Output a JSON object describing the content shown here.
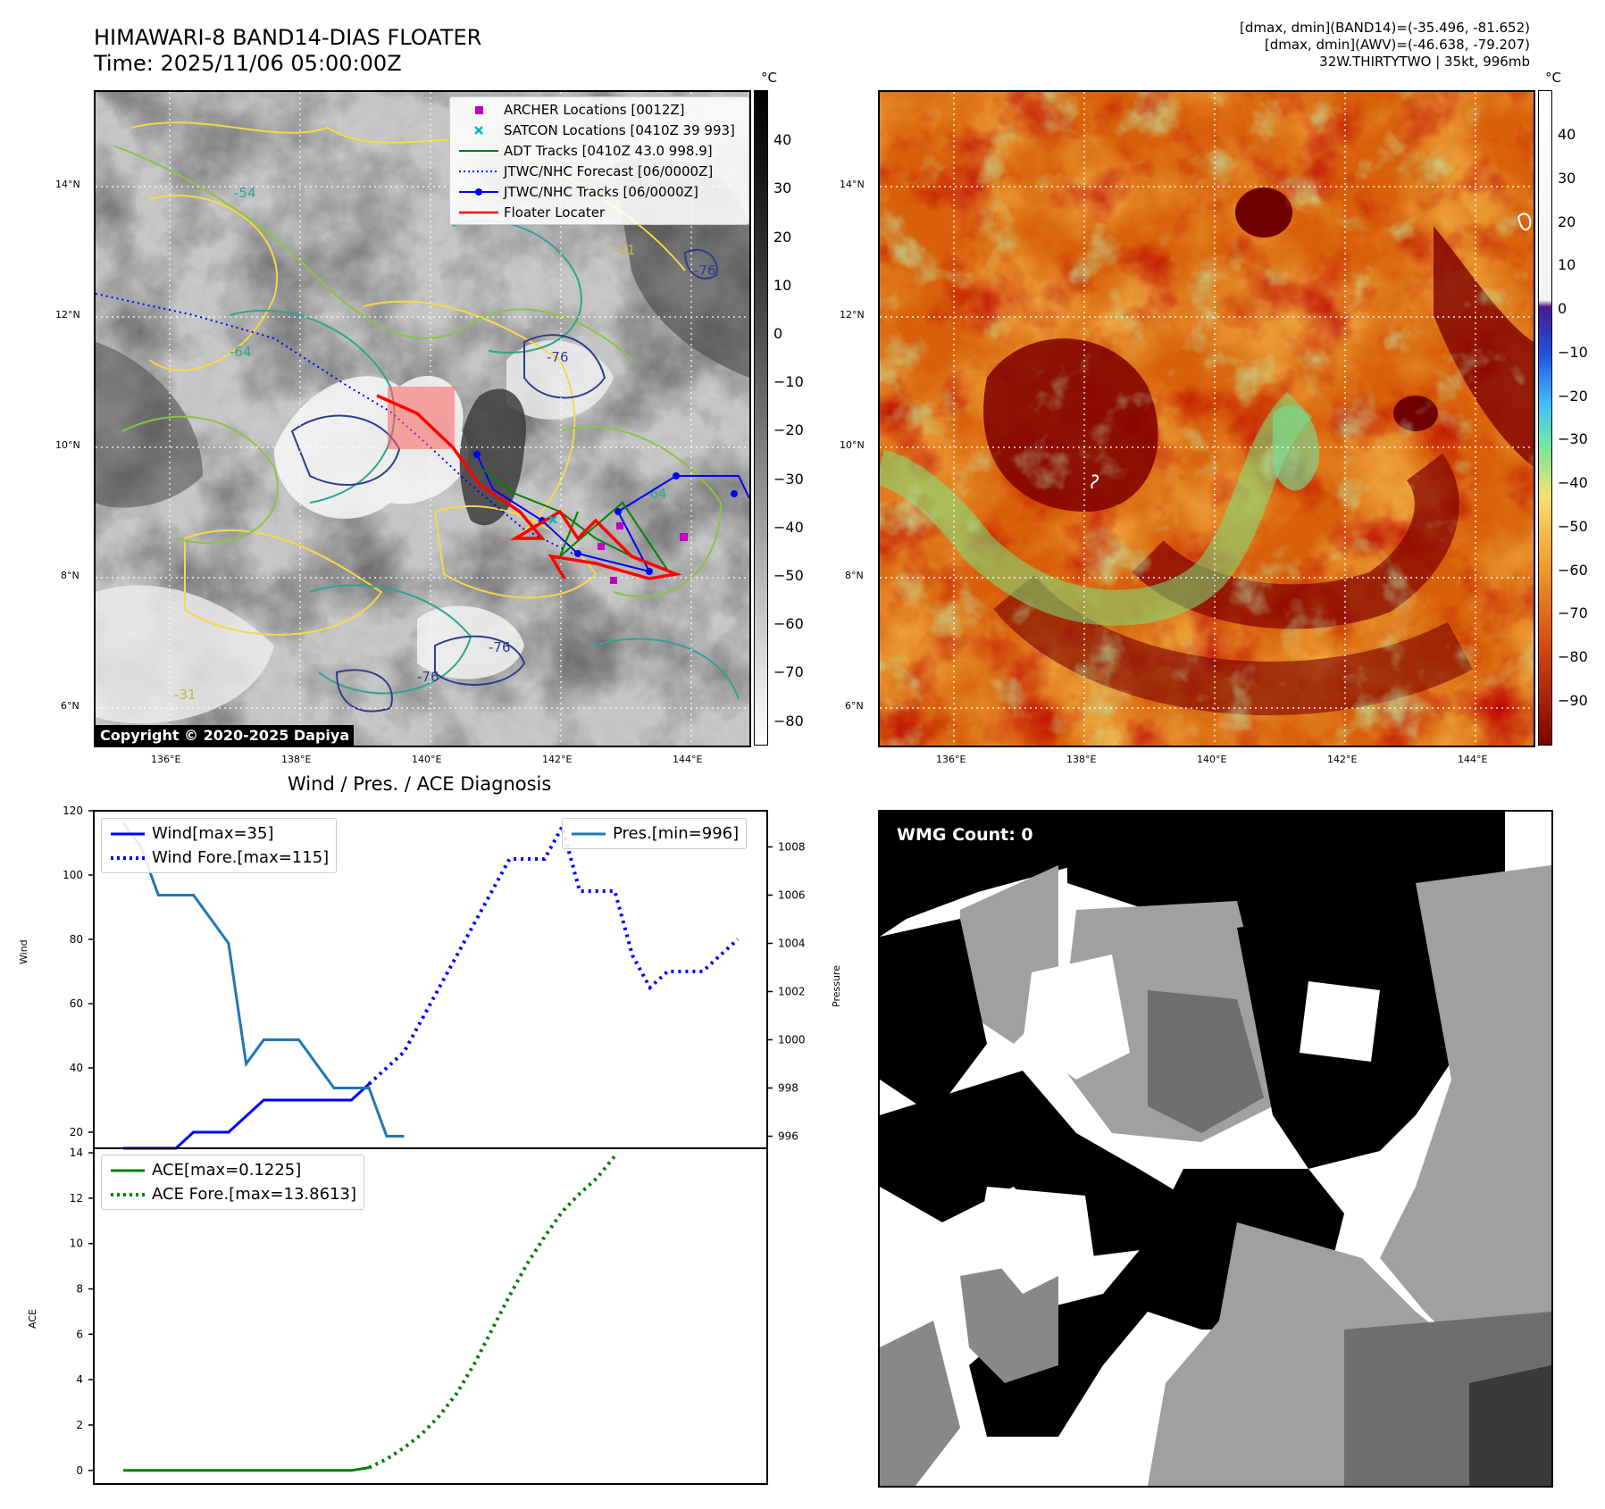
{
  "header": {
    "title_line1": "HIMAWARI-8 BAND14-DIAS FLOATER",
    "title_line2": "Time: 2025/11/06 05:00:00Z",
    "stat_line1": "[dmax, dmin](BAND14)=(-35.496, -81.652)",
    "stat_line2": "[dmax, dmin](AWV)=(-46.638, -79.207)",
    "stat_line3": "32W.THIRTYTWO | 35kt, 996mb"
  },
  "map_axes": {
    "lat_ticks": [
      "14°N",
      "12°N",
      "10°N",
      "8°N",
      "6°N"
    ],
    "lon_ticks": [
      "136°E",
      "138°E",
      "140°E",
      "142°E",
      "144°E"
    ]
  },
  "ir_panel": {
    "colorbar_unit": "°C",
    "colorbar_ticks": [
      "40",
      "30",
      "20",
      "10",
      "0",
      "−10",
      "−20",
      "−30",
      "−40",
      "−50",
      "−60",
      "−70",
      "−80"
    ],
    "contour_labels": [
      "-76",
      "-64",
      "-54",
      "-31"
    ],
    "copyright": "Copyright © 2020-2025 Dapiya",
    "legend": [
      {
        "label": "ARCHER Locations [0012Z]",
        "color": "#c000c0"
      },
      {
        "label": "SATCON Locations [0410Z 39 993]",
        "color": "#00b8b8"
      },
      {
        "label": "ADT Tracks [0410Z 43.0 998.9]",
        "color": "#008000"
      },
      {
        "label": "JTWC/NHC Forecast [06/0000Z]",
        "color": "#0000ff"
      },
      {
        "label": "JTWC/NHC Tracks [06/0000Z]",
        "color": "#0000ff"
      },
      {
        "label": "Floater Locater",
        "color": "#ff0000"
      }
    ]
  },
  "awv_panel": {
    "colorbar_unit": "°C",
    "colorbar_ticks": [
      "40",
      "30",
      "20",
      "10",
      "0",
      "−10",
      "−20",
      "−30",
      "−40",
      "−50",
      "−60",
      "−70",
      "−80",
      "−90"
    ]
  },
  "wmg_panel": {
    "count_label": "WMG Count: 0"
  },
  "diagnosis": {
    "title": "Wind / Pres. / ACE Diagnosis",
    "wind_ylabel": "Wind",
    "pres_ylabel": "Pressure",
    "ace_ylabel": "ACE",
    "wind_legend": [
      "Wind[max=35]",
      "Wind Fore.[max=115]"
    ],
    "pres_legend": [
      "Pres.[min=996]"
    ],
    "ace_legend": [
      "ACE[max=0.1225]",
      "ACE Fore.[max=13.8613]"
    ],
    "colors": {
      "wind": "#0000ff",
      "pres": "#1f77b4",
      "ace": "#008000"
    }
  },
  "chart_data": [
    {
      "type": "line",
      "title": "Wind / Pres. / ACE Diagnosis",
      "ylabel": "Wind",
      "ylim": [
        15,
        120
      ],
      "yticks": [
        20,
        40,
        60,
        80,
        100,
        120
      ],
      "series": [
        {
          "name": "Wind[max=35]",
          "style": "solid",
          "values": [
            15,
            15,
            15,
            15,
            20,
            20,
            20,
            25,
            30,
            30,
            30,
            30,
            30,
            30,
            35
          ]
        },
        {
          "name": "Wind Fore.[max=115]",
          "style": "dotted",
          "offset": 14,
          "values": [
            35,
            40,
            45,
            55,
            65,
            75,
            85,
            95,
            105,
            105,
            105,
            115,
            95,
            95,
            95,
            75,
            65,
            70,
            70,
            70,
            75,
            80
          ]
        }
      ]
    },
    {
      "type": "line",
      "ylabel": "Pressure",
      "ylim": [
        995.5,
        1009.5
      ],
      "yticks": [
        996,
        998,
        1000,
        1002,
        1004,
        1006,
        1008
      ],
      "series": [
        {
          "name": "Pres.[min=996]",
          "style": "solid",
          "values": [
            1009,
            1008,
            1006,
            1006,
            1006,
            1005,
            1004,
            999,
            1000,
            1000,
            1000,
            999,
            998,
            998,
            998,
            996,
            996
          ]
        }
      ]
    },
    {
      "type": "line",
      "ylabel": "ACE",
      "ylim": [
        -0.6,
        14.2
      ],
      "yticks": [
        0,
        2,
        4,
        6,
        8,
        10,
        12,
        14
      ],
      "series": [
        {
          "name": "ACE[max=0.1225]",
          "style": "solid",
          "values": [
            0,
            0,
            0,
            0,
            0,
            0,
            0,
            0,
            0,
            0,
            0,
            0,
            0,
            0,
            0.1225
          ]
        },
        {
          "name": "ACE Fore.[max=13.8613]",
          "style": "dotted",
          "offset": 14,
          "values": [
            0.1225,
            0.5,
            1.0,
            1.6,
            2.4,
            3.4,
            4.7,
            6.2,
            7.7,
            9.1,
            10.3,
            11.4,
            12.2,
            12.9,
            13.8613
          ]
        }
      ]
    }
  ]
}
